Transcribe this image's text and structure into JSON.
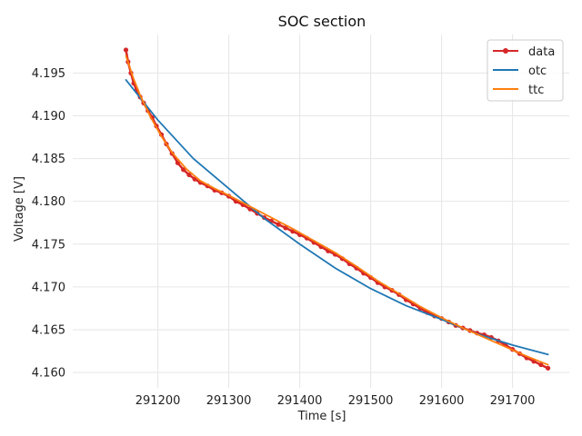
{
  "chart_data": {
    "type": "line",
    "title": "SOC section",
    "xlabel": "Time [s]",
    "ylabel": "Voltage [V]",
    "xlim": [
      291080,
      291780
    ],
    "ylim": [
      4.1582,
      4.1995
    ],
    "x_ticks": [
      {
        "value": 291200,
        "label": "291200"
      },
      {
        "value": 291300,
        "label": "291300"
      },
      {
        "value": 291400,
        "label": "291400"
      },
      {
        "value": 291500,
        "label": "291500"
      },
      {
        "value": 291600,
        "label": "291600"
      },
      {
        "value": 291700,
        "label": "291700"
      }
    ],
    "y_ticks": [
      {
        "value": 4.195,
        "label": "4.195"
      },
      {
        "value": 4.19,
        "label": "4.190"
      },
      {
        "value": 4.185,
        "label": "4.185"
      },
      {
        "value": 4.18,
        "label": "4.180"
      },
      {
        "value": 4.175,
        "label": "4.175"
      },
      {
        "value": 4.17,
        "label": "4.170"
      },
      {
        "value": 4.165,
        "label": "4.165"
      },
      {
        "value": 4.16,
        "label": "4.160"
      }
    ],
    "grid": true,
    "legend_position": "top-right",
    "series": [
      {
        "name": "data",
        "color": "#d62728",
        "marker": "circle",
        "x": [
          291155,
          291158,
          291162,
          291166,
          291170,
          291175,
          291180,
          291186,
          291192,
          291198,
          291205,
          291212,
          291220,
          291228,
          291236,
          291244,
          291252,
          291260,
          291270,
          291280,
          291290,
          291300,
          291310,
          291320,
          291330,
          291340,
          291350,
          291360,
          291370,
          291380,
          291390,
          291400,
          291410,
          291420,
          291430,
          291440,
          291450,
          291460,
          291470,
          291480,
          291490,
          291500,
          291510,
          291520,
          291530,
          291540,
          291550,
          291560,
          291570,
          291580,
          291590,
          291600,
          291610,
          291620,
          291630,
          291640,
          291650,
          291660,
          291670,
          291680,
          291690,
          291700,
          291710,
          291720,
          291730,
          291740,
          291750
        ],
        "y": [
          4.1977,
          4.1963,
          4.195,
          4.1938,
          4.193,
          4.1922,
          4.1915,
          4.1906,
          4.1898,
          4.1888,
          4.1878,
          4.1867,
          4.1856,
          4.1845,
          4.1837,
          4.1831,
          4.1826,
          4.1822,
          4.1818,
          4.1813,
          4.181,
          4.1806,
          4.18,
          4.1796,
          4.1791,
          4.1786,
          4.1781,
          4.1777,
          4.1773,
          4.1769,
          4.1765,
          4.1761,
          4.1757,
          4.1752,
          4.1747,
          4.1742,
          4.1738,
          4.1733,
          4.1727,
          4.1722,
          4.1716,
          4.1711,
          4.1705,
          4.17,
          4.1696,
          4.1691,
          4.1685,
          4.168,
          4.1675,
          4.167,
          4.1666,
          4.1663,
          4.1659,
          4.1655,
          4.1652,
          4.1649,
          4.1646,
          4.1644,
          4.1641,
          4.1637,
          4.1632,
          4.1627,
          4.1622,
          4.1617,
          4.1613,
          4.1609,
          4.1605
        ]
      },
      {
        "name": "otc",
        "color": "#1f77b4",
        "marker": "none",
        "x": [
          291155,
          291200,
          291250,
          291300,
          291350,
          291400,
          291450,
          291500,
          291550,
          291600,
          291650,
          291700,
          291750
        ],
        "y": [
          4.1942,
          4.1895,
          4.185,
          4.1815,
          4.178,
          4.175,
          4.1722,
          4.1698,
          4.1678,
          4.1662,
          4.1645,
          4.1632,
          4.1621
        ]
      },
      {
        "name": "ttc",
        "color": "#ff7f0e",
        "marker": "none",
        "x": [
          291155,
          291165,
          291175,
          291190,
          291205,
          291220,
          291240,
          291260,
          291280,
          291300,
          291330,
          291360,
          291390,
          291420,
          291450,
          291480,
          291510,
          291540,
          291570,
          291600,
          291630,
          291660,
          291690,
          291720,
          291750
        ],
        "y": [
          4.197,
          4.1945,
          4.1924,
          4.1898,
          4.1876,
          4.1857,
          4.1838,
          4.1824,
          4.1815,
          4.1807,
          4.1794,
          4.1781,
          4.1768,
          4.1754,
          4.174,
          4.1724,
          4.1707,
          4.1692,
          4.1677,
          4.1664,
          4.1652,
          4.1641,
          4.163,
          4.1619,
          4.1609
        ]
      }
    ]
  }
}
